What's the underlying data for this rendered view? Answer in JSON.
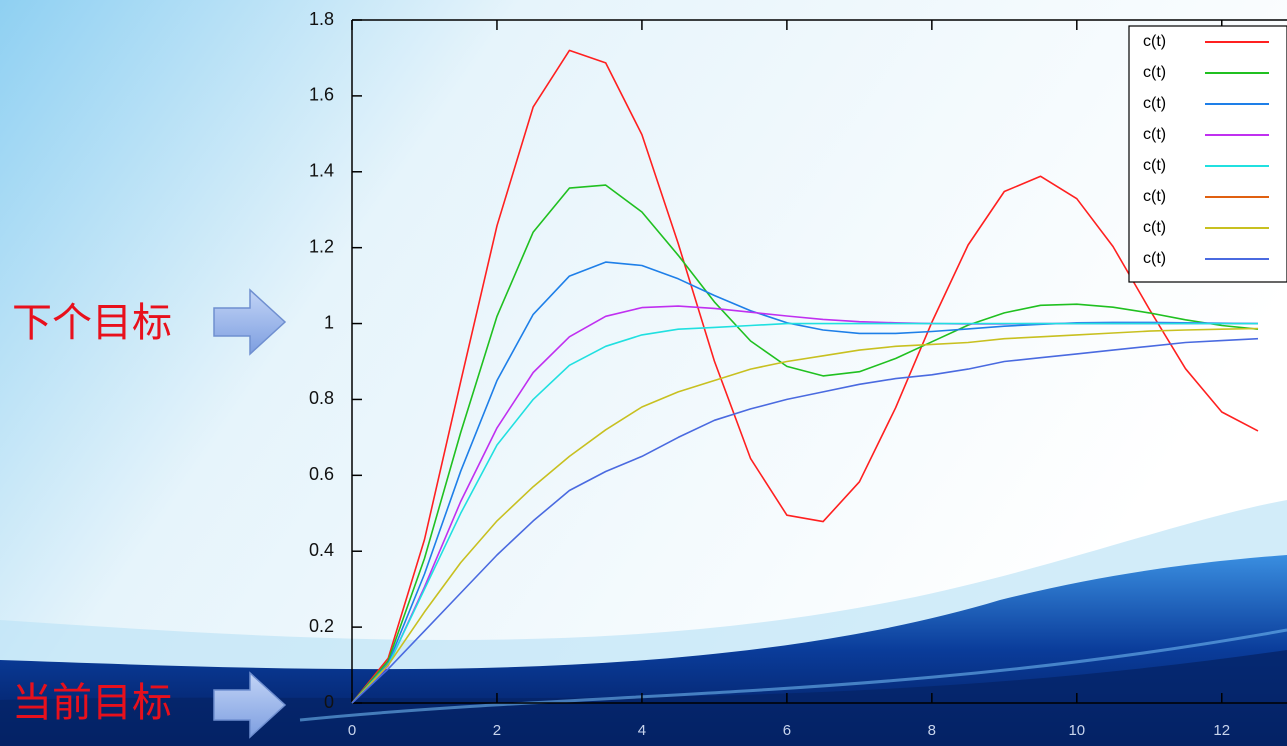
{
  "chart_data": {
    "type": "line",
    "annotations": [
      "下个目标",
      "当前目标"
    ],
    "x": [
      0,
      0.5,
      1,
      1.5,
      2,
      2.5,
      3,
      3.5,
      4,
      4.5,
      5,
      5.5,
      6,
      6.5,
      7,
      7.5,
      8,
      8.5,
      9,
      9.5,
      10,
      10.5,
      11,
      11.5,
      12,
      12.5
    ],
    "xlim": [
      0,
      12.9
    ],
    "ylim": [
      0,
      1.8
    ],
    "xticks": [
      0,
      2,
      4,
      6,
      8,
      10,
      12
    ],
    "yticks": [
      0,
      0.2,
      0.4,
      0.6,
      0.8,
      1,
      1.2,
      1.4,
      1.6,
      1.8
    ],
    "legend": "upper right",
    "series": [
      {
        "name": "c(t)",
        "color": "#ff2020",
        "values": [
          0,
          0.118,
          0.431,
          0.847,
          1.258,
          1.571,
          1.72,
          1.687,
          1.498,
          1.211,
          0.901,
          0.644,
          0.495,
          0.478,
          0.583,
          0.778,
          1.003,
          1.207,
          1.348,
          1.388,
          1.329,
          1.203,
          1.038,
          0.881,
          0.767,
          0.717
        ]
      },
      {
        "name": "c(t)",
        "color": "#20c020",
        "values": [
          0,
          0.111,
          0.381,
          0.713,
          1.019,
          1.241,
          1.357,
          1.365,
          1.294,
          1.18,
          1.057,
          0.954,
          0.887,
          0.862,
          0.873,
          0.908,
          0.952,
          0.996,
          1.028,
          1.048,
          1.051,
          1.043,
          1.028,
          1.01,
          0.995,
          0.985
        ]
      },
      {
        "name": "c(t)",
        "color": "#1e7fe8",
        "values": [
          0,
          0.104,
          0.34,
          0.611,
          0.85,
          1.024,
          1.125,
          1.162,
          1.153,
          1.118,
          1.074,
          1.034,
          1.002,
          0.983,
          0.974,
          0.974,
          0.979,
          0.986,
          0.993,
          0.998,
          1.002,
          1.003,
          1.003,
          1.002,
          1.001,
          1
        ]
      },
      {
        "name": "c(t)",
        "color": "#c030f0",
        "values": [
          0,
          0.098,
          0.306,
          0.531,
          0.725,
          0.871,
          0.965,
          1.019,
          1.042,
          1.046,
          1.04,
          1.03,
          1.02,
          1.011,
          1.005,
          1.002,
          1,
          0.999,
          0.999,
          1,
          1,
          1,
          1,
          1,
          1,
          1
        ]
      },
      {
        "name": "c(t)",
        "color": "#20e0e0",
        "values": [
          0,
          0.1,
          0.3,
          0.5,
          0.68,
          0.8,
          0.89,
          0.94,
          0.97,
          0.985,
          0.99,
          0.995,
          1,
          1,
          1,
          1,
          1,
          1,
          1,
          1,
          1,
          1,
          1,
          1,
          1,
          1
        ]
      },
      {
        "name": "c(t)",
        "color": "#e06010",
        "values": [
          null,
          null,
          null,
          null,
          null,
          null,
          null,
          null,
          null,
          null,
          null,
          null,
          null,
          null,
          null,
          null,
          null,
          null,
          null,
          null,
          null,
          null,
          null,
          null,
          null,
          null
        ]
      },
      {
        "name": "c(t)",
        "color": "#c8c020",
        "values": [
          0,
          0.1,
          0.24,
          0.37,
          0.48,
          0.57,
          0.65,
          0.72,
          0.78,
          0.82,
          0.85,
          0.88,
          0.9,
          0.915,
          0.93,
          0.94,
          0.945,
          0.95,
          0.96,
          0.965,
          0.97,
          0.975,
          0.98,
          0.983,
          0.985,
          0.987
        ]
      },
      {
        "name": "c(t)",
        "color": "#4a6ae0",
        "values": [
          0,
          0.09,
          0.19,
          0.29,
          0.39,
          0.48,
          0.56,
          0.61,
          0.65,
          0.7,
          0.745,
          0.775,
          0.8,
          0.82,
          0.84,
          0.855,
          0.865,
          0.88,
          0.9,
          0.91,
          0.92,
          0.93,
          0.94,
          0.95,
          0.955,
          0.96
        ]
      }
    ]
  }
}
